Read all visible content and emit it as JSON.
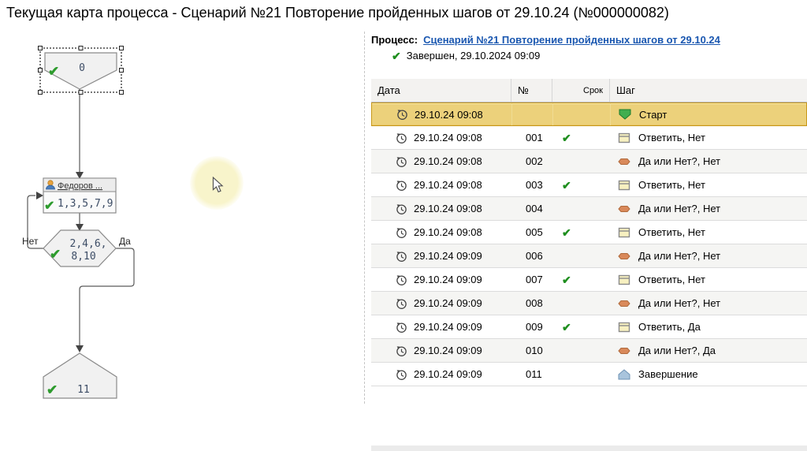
{
  "title": "Текущая карта процесса - Сценарий №21 Повторение пройденных шагов от 29.10.24 (№000000082)",
  "flowchart": {
    "start": {
      "label": "0"
    },
    "task": {
      "header": "Федоров ...",
      "label": "1,3,5,7,9"
    },
    "decision": {
      "label_line1": "2,4,6,",
      "label_line2": "8,10",
      "no_label": "Нет",
      "yes_label": "Да"
    },
    "finish": {
      "label": "11"
    }
  },
  "process_panel": {
    "process_label": "Процесс:",
    "process_link": "Сценарий №21 Повторение пройденных шагов от 29.10.24",
    "status_check": "✔",
    "status": "Завершен, 29.10.2024 09:09"
  },
  "table": {
    "columns": {
      "date": "Дата",
      "num": "№",
      "srok": "Срок",
      "step": "Шаг"
    },
    "rows": [
      {
        "date": "29.10.24 09:08",
        "num": "",
        "ok": false,
        "icon": "start",
        "step": "Старт",
        "selected": true
      },
      {
        "date": "29.10.24 09:08",
        "num": "001",
        "ok": true,
        "icon": "task",
        "step": "Ответить, Нет"
      },
      {
        "date": "29.10.24 09:08",
        "num": "002",
        "ok": false,
        "icon": "decision",
        "step": "Да или Нет?, Нет"
      },
      {
        "date": "29.10.24 09:08",
        "num": "003",
        "ok": true,
        "icon": "task",
        "step": "Ответить, Нет"
      },
      {
        "date": "29.10.24 09:08",
        "num": "004",
        "ok": false,
        "icon": "decision",
        "step": "Да или Нет?, Нет"
      },
      {
        "date": "29.10.24 09:08",
        "num": "005",
        "ok": true,
        "icon": "task",
        "step": "Ответить, Нет"
      },
      {
        "date": "29.10.24 09:09",
        "num": "006",
        "ok": false,
        "icon": "decision",
        "step": "Да или Нет?, Нет"
      },
      {
        "date": "29.10.24 09:09",
        "num": "007",
        "ok": true,
        "icon": "task",
        "step": "Ответить, Нет"
      },
      {
        "date": "29.10.24 09:09",
        "num": "008",
        "ok": false,
        "icon": "decision",
        "step": "Да или Нет?, Нет"
      },
      {
        "date": "29.10.24 09:09",
        "num": "009",
        "ok": true,
        "icon": "task",
        "step": "Ответить, Да"
      },
      {
        "date": "29.10.24 09:09",
        "num": "010",
        "ok": false,
        "icon": "decision",
        "step": "Да или Нет?, Да"
      },
      {
        "date": "29.10.24 09:09",
        "num": "011",
        "ok": false,
        "icon": "finish",
        "step": "Завершение"
      }
    ],
    "ok_glyph": "✔"
  },
  "colors": {
    "selected_row_bg": "#ecd17b",
    "selected_row_border": "#c8981a",
    "link_blue": "#1a57b0",
    "check_green": "#1e8e1e",
    "node_fill": "#f1f1f1",
    "node_border": "#8a8a8a",
    "node_text": "#3d4d66",
    "start_icon_fill": "#3fae4f",
    "start_icon_border": "#1c7a2d",
    "task_icon_fill": "#f7f0c0",
    "task_icon_border": "#8a8a8a",
    "decision_icon_fill": "#d9895a",
    "decision_icon_border": "#b06a3c",
    "finish_icon_fill": "#a9c4dc",
    "finish_icon_border": "#6f93b5"
  }
}
